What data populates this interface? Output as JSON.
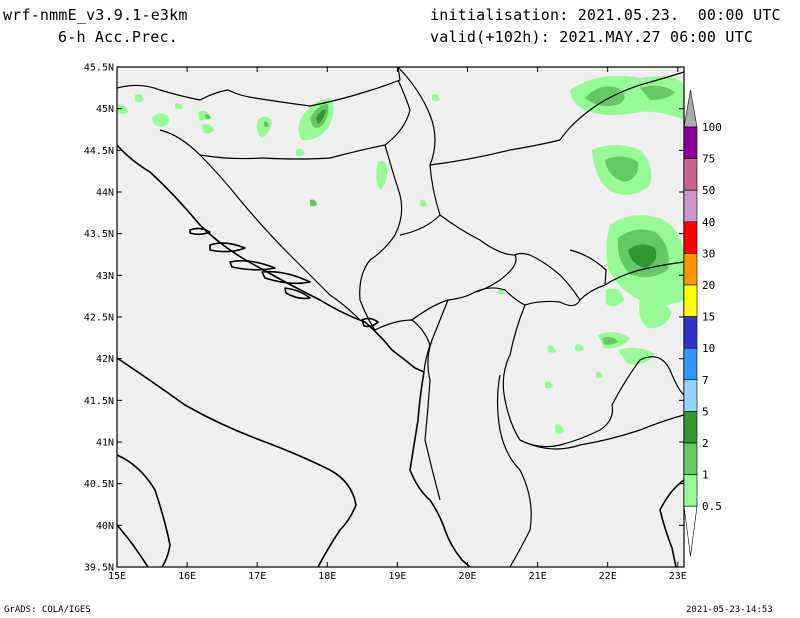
{
  "header": {
    "model": "wrf-nmmE_v3.9.1-e3km",
    "field": "6-h Acc.Prec.",
    "init": "initialisation: 2021.05.23.  00:00 UTC",
    "valid": "valid(+102h): 2021.MAY.27 06:00 UTC"
  },
  "footer": {
    "left": "GrADS: COLA/IGES",
    "right": "2021-05-23-14:53"
  },
  "map": {
    "lon_labels": [
      "15E",
      "16E",
      "17E",
      "18E",
      "19E",
      "20E",
      "21E",
      "22E",
      "23E"
    ],
    "lat_labels": [
      "45.5N",
      "45N",
      "44.5N",
      "44N",
      "43.5N",
      "43N",
      "42.5N",
      "42N",
      "41.5N",
      "41N",
      "40.5N",
      "40N",
      "39.5N"
    ],
    "background_color": "#efefef",
    "border_color": "#000000"
  },
  "colorbar": {
    "levels": [
      "100",
      "75",
      "50",
      "40",
      "30",
      "20",
      "15",
      "10",
      "7",
      "5",
      "2",
      "1",
      "0.5"
    ],
    "colors": [
      "#ababab",
      "#8a0096",
      "#c8648c",
      "#c896c8",
      "#ff0000",
      "#ff9600",
      "#ffff00",
      "#3232c8",
      "#3296fa",
      "#96d2fa",
      "#329632",
      "#64c864",
      "#96fa96"
    ]
  }
}
